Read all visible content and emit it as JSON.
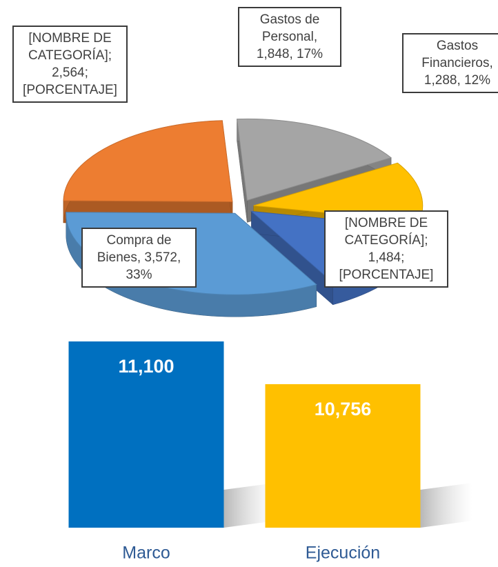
{
  "chart_data": [
    {
      "type": "pie3d",
      "categories": [
        "Gastos de Personal",
        "Gastos Financieros",
        "[NOMBRE DE CATEGORÍA]",
        "Compra de Bienes",
        "[NOMBRE DE CATEGORÍA]"
      ],
      "values": [
        1848,
        1288,
        1484,
        3572,
        2564
      ],
      "value_labels": [
        "1,848",
        "1,288",
        "1,484",
        "3,572",
        "2,564"
      ],
      "percent_labels": [
        "17%",
        "12%",
        "[PORCENTAJE]",
        "33%",
        "[PORCENTAJE]"
      ],
      "label_separators": [
        ",",
        ",",
        ";",
        ",",
        ";"
      ],
      "colors": [
        "#a5a5a5",
        "#ffc000",
        "#4472c4",
        "#5b9bd5",
        "#ed7d31"
      ]
    },
    {
      "type": "bar",
      "categories": [
        "Marco",
        "Ejecución"
      ],
      "values": [
        11100,
        10756
      ],
      "value_labels": [
        "11,100",
        "10,756"
      ],
      "colors": [
        "#0070c0",
        "#ffc000"
      ],
      "ylim": [
        9600,
        11300
      ]
    }
  ]
}
